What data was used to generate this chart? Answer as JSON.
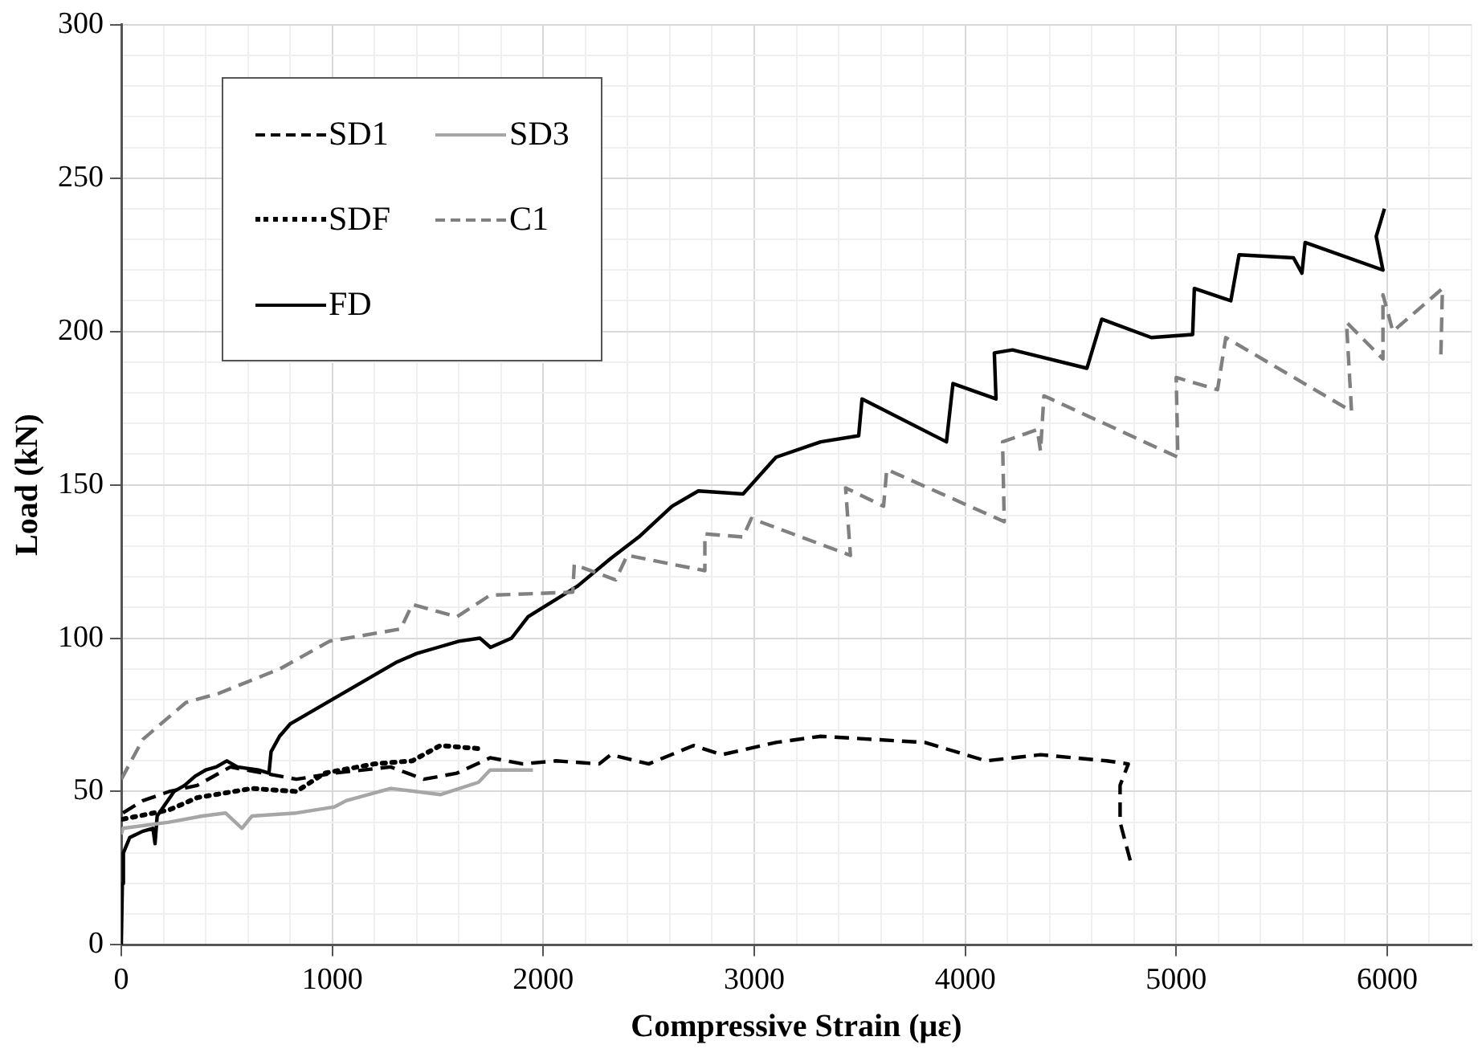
{
  "chart_data": {
    "type": "line",
    "xlabel": "Compressive Strain (με)",
    "ylabel": "Load (kN)",
    "xlim": [
      0,
      6400
    ],
    "ylim": [
      0,
      300
    ],
    "xticks": [
      0,
      {
        "value": 200,
        "label": null
      },
      {
        "value": 400,
        "label": null
      },
      {
        "value": 600,
        "label": null
      },
      {
        "value": 800,
        "label": null
      },
      1000,
      {
        "value": 1200,
        "label": null
      },
      {
        "value": 1400,
        "label": null
      },
      {
        "value": 1600,
        "label": null
      },
      {
        "value": 1800,
        "label": null
      },
      2000,
      {
        "value": 2200,
        "label": null
      },
      {
        "value": 2400,
        "label": null
      },
      {
        "value": 2600,
        "label": null
      },
      {
        "value": 2800,
        "label": null
      },
      3000,
      {
        "value": 3200,
        "label": null
      },
      {
        "value": 3400,
        "label": null
      },
      {
        "value": 3600,
        "label": null
      },
      {
        "value": 3800,
        "label": null
      },
      4000,
      {
        "value": 4200,
        "label": null
      },
      {
        "value": 4400,
        "label": null
      },
      {
        "value": 4600,
        "label": null
      },
      {
        "value": 4800,
        "label": null
      },
      5000,
      {
        "value": 5200,
        "label": null
      },
      {
        "value": 5400,
        "label": null
      },
      {
        "value": 5600,
        "label": null
      },
      {
        "value": 5800,
        "label": null
      },
      6000,
      {
        "value": 6200,
        "label": null
      },
      {
        "value": 6400,
        "label": null
      }
    ],
    "yticks": [
      0,
      {
        "value": 10,
        "label": null
      },
      {
        "value": 20,
        "label": null
      },
      {
        "value": 30,
        "label": null
      },
      {
        "value": 40,
        "label": null
      },
      50,
      {
        "value": 60,
        "label": null
      },
      {
        "value": 70,
        "label": null
      },
      {
        "value": 80,
        "label": null
      },
      {
        "value": 90,
        "label": null
      },
      100,
      {
        "value": 110,
        "label": null
      },
      {
        "value": 120,
        "label": null
      },
      {
        "value": 130,
        "label": null
      },
      {
        "value": 140,
        "label": null
      },
      150,
      {
        "value": 160,
        "label": null
      },
      {
        "value": 170,
        "label": null
      },
      {
        "value": 180,
        "label": null
      },
      {
        "value": 190,
        "label": null
      },
      200,
      {
        "value": 210,
        "label": null
      },
      {
        "value": 220,
        "label": null
      },
      {
        "value": 230,
        "label": null
      },
      {
        "value": 240,
        "label": null
      },
      250,
      {
        "value": 260,
        "label": null
      },
      {
        "value": 270,
        "label": null
      },
      {
        "value": 280,
        "label": null
      },
      {
        "value": 290,
        "label": null
      },
      300
    ],
    "grid": true,
    "legend": "top left",
    "marker": "none",
    "series": [
      {
        "name": "SD1",
        "color": "#000000",
        "line_style": "dashed",
        "x": [
          8,
          102,
          227,
          360,
          517,
          830,
          1011,
          1277,
          1434,
          1591,
          1748,
          1904,
          2061,
          2265,
          2320,
          2500,
          2712,
          2845,
          3103,
          3315,
          3809,
          4099,
          4357,
          4671,
          4773,
          4734,
          4734,
          4788
        ],
        "values": [
          43,
          47,
          50,
          52,
          58,
          54,
          56,
          58,
          54,
          56,
          61,
          59,
          60,
          59,
          62,
          59,
          65,
          62,
          66,
          68,
          66,
          60,
          62,
          60,
          59,
          52,
          40,
          26
        ]
      },
      {
        "name": "SD3",
        "color": "#a6a6a6",
        "line_style": "solid",
        "x": [
          0,
          8,
          227,
          384,
          494,
          572,
          619,
          830,
          1011,
          1066,
          1277,
          1512,
          1693,
          1748,
          1951
        ],
        "values": [
          36,
          38,
          40,
          42,
          43,
          38,
          42,
          43,
          45,
          47,
          51,
          49,
          53,
          57,
          57
        ]
      },
      {
        "name": "SDF",
        "color": "#000000",
        "line_style": "dotted",
        "x": [
          8,
          227,
          360,
          619,
          830,
          964,
          1199,
          1379,
          1512,
          1693
        ],
        "values": [
          41,
          44,
          48,
          51,
          50,
          56,
          59,
          60,
          65,
          64
        ]
      },
      {
        "name": "C1",
        "color": "#808080",
        "line_style": "dashed",
        "x": [
          0,
          8,
          102,
          306,
          462,
          752,
          987,
          1324,
          1379,
          1591,
          1748,
          2140,
          2147,
          2343,
          2398,
          2766,
          2766,
          2947,
          2986,
          3456,
          3433,
          3613,
          3628,
          4185,
          4177,
          4342,
          4357,
          4373,
          5008,
          5000,
          5196,
          5235,
          5831,
          5807,
          5980,
          5980,
          6027,
          6262,
          6254
        ],
        "values": [
          54,
          55,
          67,
          79,
          82,
          90,
          99,
          103,
          111,
          107,
          114,
          115,
          124,
          119,
          127,
          122,
          134,
          133,
          139,
          127,
          149,
          143,
          155,
          138,
          164,
          168,
          161,
          179,
          159,
          185,
          181,
          198,
          174,
          203,
          191,
          212,
          200,
          214,
          191
        ]
      },
      {
        "name": "FD",
        "color": "#000000",
        "line_style": "solid",
        "x": [
          0,
          5,
          10,
          40,
          100,
          150,
          160,
          170,
          200,
          250,
          300,
          350,
          400,
          450,
          500,
          550,
          650,
          700,
          710,
          750,
          800,
          900,
          1000,
          1100,
          1200,
          1300,
          1400,
          1500,
          1600,
          1700,
          1750,
          1850,
          1928,
          2163,
          2320,
          2453,
          2610,
          2735,
          2947,
          3103,
          3315,
          3495,
          3511,
          3911,
          3942,
          4146,
          4138,
          4224,
          4577,
          4647,
          4882,
          5078,
          5086,
          5259,
          5298,
          5556,
          5596,
          5611,
          5980,
          5948,
          5987
        ],
        "values": [
          0,
          20,
          30,
          35,
          37,
          38,
          33,
          42,
          45,
          50,
          52,
          55,
          57,
          58,
          60,
          58,
          57,
          56,
          63,
          68,
          72,
          76,
          80,
          84,
          88,
          92,
          95,
          97,
          99,
          100,
          97,
          100,
          107,
          117,
          126,
          133,
          143,
          148,
          147,
          159,
          164,
          166,
          178,
          164,
          183,
          178,
          193,
          194,
          188,
          204,
          198,
          199,
          214,
          210,
          225,
          224,
          219,
          229,
          220,
          231,
          240
        ]
      }
    ]
  }
}
